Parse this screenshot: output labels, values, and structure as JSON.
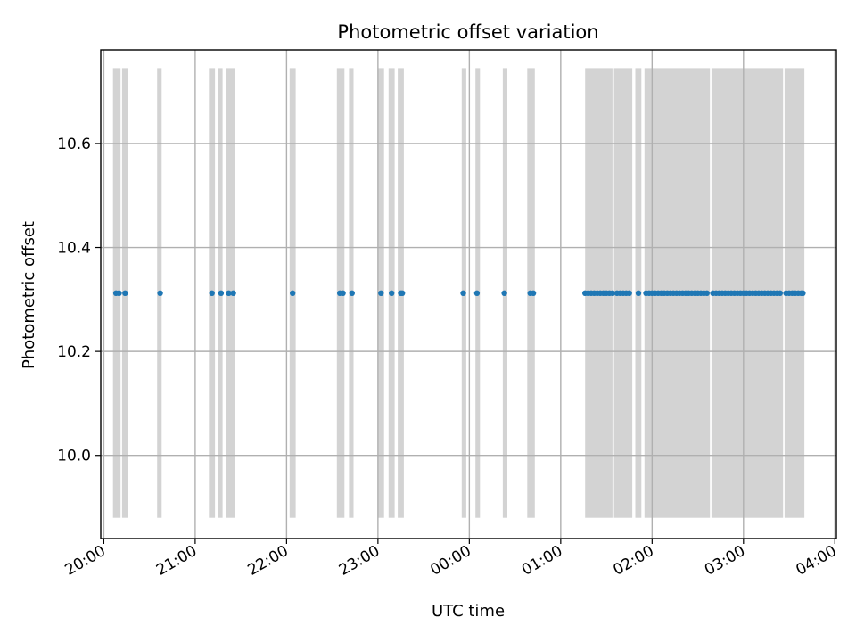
{
  "chart_data": {
    "type": "scatter",
    "title": "Photometric offset variation",
    "xlabel": "UTC time",
    "ylabel": "Photometric offset",
    "x_is_time": true,
    "x_range": [
      "20:00",
      "04:00"
    ],
    "xlim": [
      "19:58",
      "04:01"
    ],
    "ylim": [
      9.84,
      10.78
    ],
    "y_ticks": [
      10.0,
      10.2,
      10.4,
      10.6
    ],
    "y_tick_labels": [
      "10.0",
      "10.2",
      "10.4",
      "10.6"
    ],
    "x_ticks": [
      "20:00",
      "21:00",
      "22:00",
      "23:00",
      "00:00",
      "01:00",
      "02:00",
      "03:00",
      "04:00"
    ],
    "x_tick_labels": [
      "20:00",
      "21:00",
      "22:00",
      "23:00",
      "00:00",
      "01:00",
      "02:00",
      "03:00",
      "04:00"
    ],
    "grid": true,
    "legend": "none",
    "colors": {
      "points": "#1f77b4",
      "bands": "#d3d3d3",
      "grid": "#b0b0b0"
    },
    "band_range": [
      9.88,
      10.745
    ],
    "bands": [
      [
        "20:06",
        "20:11"
      ],
      [
        "20:12",
        "20:16"
      ],
      [
        "20:35",
        "20:38"
      ],
      [
        "21:09",
        "21:13"
      ],
      [
        "21:15",
        "21:18"
      ],
      [
        "21:20",
        "21:26"
      ],
      [
        "22:02",
        "22:06"
      ],
      [
        "22:33",
        "22:38"
      ],
      [
        "22:41",
        "22:44"
      ],
      [
        "23:00",
        "23:04"
      ],
      [
        "23:07",
        "23:11"
      ],
      [
        "23:13",
        "23:17"
      ],
      [
        "23:55",
        "23:58"
      ],
      [
        "00:04",
        "00:07"
      ],
      [
        "00:22",
        "00:25"
      ],
      [
        "00:38",
        "00:43"
      ],
      [
        "01:16",
        "01:34"
      ],
      [
        "01:35",
        "01:47"
      ],
      [
        "01:49",
        "01:53"
      ],
      [
        "01:55",
        "02:38"
      ],
      [
        "02:39",
        "03:26"
      ],
      [
        "03:27",
        "03:40"
      ]
    ],
    "series": [
      {
        "y": 10.312,
        "x": [
          "20:08",
          "20:10",
          "20:14",
          "20:37",
          "21:11",
          "21:17",
          "21:22",
          "21:25",
          "22:04",
          "22:35",
          "22:37",
          "22:43",
          "23:02",
          "23:09",
          "23:15",
          "23:16",
          "23:56",
          "00:05",
          "00:23",
          "00:40",
          "00:42",
          "01:16",
          "01:18",
          "01:20",
          "01:22",
          "01:24",
          "01:26",
          "01:28",
          "01:30",
          "01:32",
          "01:34",
          "01:37",
          "01:39",
          "01:41",
          "01:43",
          "01:45",
          "01:51",
          "01:56",
          "01:58",
          "02:00",
          "02:02",
          "02:04",
          "02:06",
          "02:08",
          "02:10",
          "02:12",
          "02:14",
          "02:16",
          "02:18",
          "02:20",
          "02:22",
          "02:24",
          "02:26",
          "02:28",
          "02:30",
          "02:32",
          "02:34",
          "02:36",
          "02:40",
          "02:42",
          "02:44",
          "02:46",
          "02:48",
          "02:50",
          "02:52",
          "02:54",
          "02:56",
          "02:58",
          "03:00",
          "03:02",
          "03:04",
          "03:06",
          "03:08",
          "03:10",
          "03:12",
          "03:14",
          "03:16",
          "03:18",
          "03:20",
          "03:22",
          "03:24",
          "03:28",
          "03:30",
          "03:32",
          "03:34",
          "03:36",
          "03:38",
          "03:39"
        ]
      }
    ]
  }
}
